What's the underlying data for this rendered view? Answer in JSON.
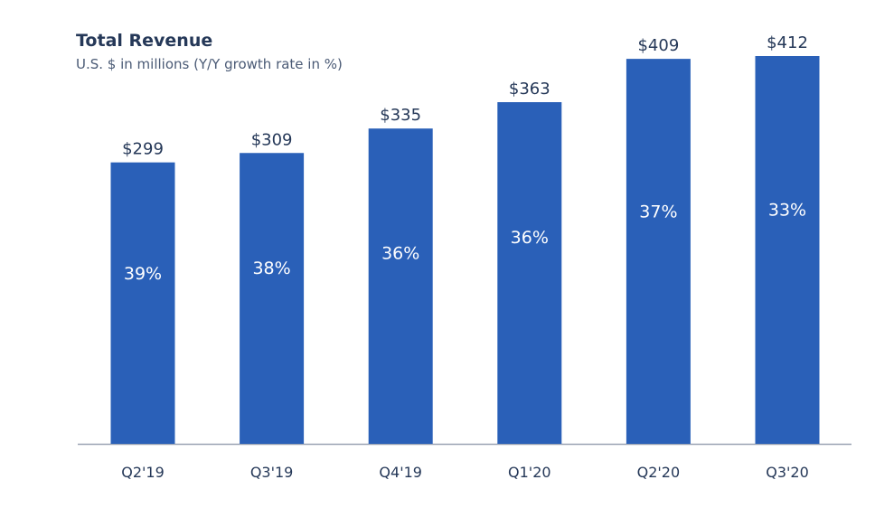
{
  "chart_data": {
    "type": "bar",
    "title": "Total Revenue",
    "subtitle": "U.S. $ in millions (Y/Y growth rate in %)",
    "categories": [
      "Q2'19",
      "Q3'19",
      "Q4'19",
      "Q1'20",
      "Q2'20",
      "Q3'20"
    ],
    "values": [
      299,
      309,
      335,
      363,
      409,
      412
    ],
    "value_labels": [
      "$299",
      "$309",
      "$335",
      "$363",
      "$409",
      "$412"
    ],
    "growth_labels": [
      "39%",
      "38%",
      "36%",
      "36%",
      "37%",
      "33%"
    ],
    "ylim": [
      0,
      412
    ],
    "grid": false,
    "legend": "none",
    "bar_color": "#2a60b8",
    "axis_color": "#9aa3b2"
  }
}
